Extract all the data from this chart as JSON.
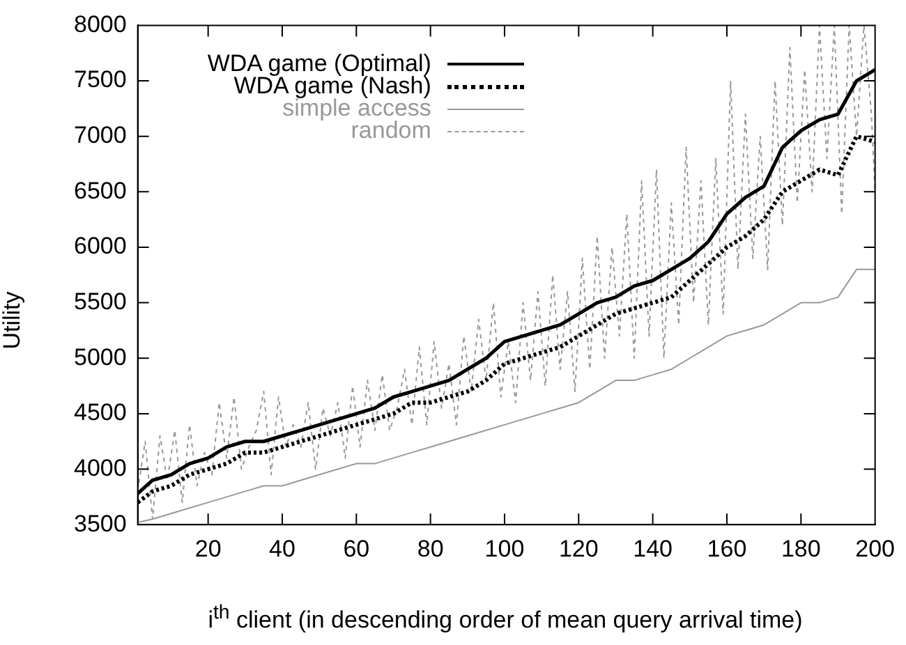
{
  "chart_data": {
    "type": "line",
    "xlabel": "i$^{th}$ client (in descending order of mean query arrival time)",
    "ylabel": "Utility",
    "xlim": [
      1,
      200
    ],
    "xticks": [
      20,
      40,
      60,
      80,
      100,
      120,
      140,
      160,
      180,
      200
    ],
    "ylim": [
      3500,
      8000
    ],
    "yticks": [
      3500,
      4000,
      4500,
      5000,
      5500,
      6000,
      6500,
      7000,
      7500,
      8000
    ],
    "legend": "top left",
    "grid": false,
    "marker": "none",
    "series": [
      {
        "name": "WDA game (Optimal)",
        "color": "#000000",
        "line_style": "solid",
        "x": [
          1,
          5,
          10,
          15,
          20,
          25,
          30,
          35,
          40,
          45,
          50,
          55,
          60,
          65,
          70,
          75,
          80,
          85,
          90,
          95,
          100,
          105,
          110,
          115,
          120,
          125,
          130,
          135,
          140,
          145,
          150,
          155,
          160,
          165,
          170,
          175,
          180,
          185,
          190,
          195,
          200
        ],
        "values": [
          3780,
          3900,
          3950,
          4050,
          4100,
          4200,
          4250,
          4250,
          4300,
          4350,
          4400,
          4450,
          4500,
          4550,
          4650,
          4700,
          4750,
          4800,
          4900,
          5000,
          5150,
          5200,
          5250,
          5300,
          5400,
          5500,
          5550,
          5650,
          5700,
          5800,
          5900,
          6050,
          6300,
          6450,
          6550,
          6900,
          7050,
          7150,
          7200,
          7500,
          7600
        ]
      },
      {
        "name": "WDA game (Nash)",
        "color": "#000000",
        "line_style": "dotted",
        "x": [
          1,
          5,
          10,
          15,
          20,
          25,
          30,
          35,
          40,
          45,
          50,
          55,
          60,
          65,
          70,
          75,
          80,
          85,
          90,
          95,
          100,
          105,
          110,
          115,
          120,
          125,
          130,
          135,
          140,
          145,
          150,
          155,
          160,
          165,
          170,
          175,
          180,
          185,
          190,
          195,
          200
        ],
        "values": [
          3700,
          3800,
          3850,
          3950,
          4000,
          4050,
          4150,
          4150,
          4200,
          4250,
          4300,
          4350,
          4400,
          4450,
          4500,
          4600,
          4600,
          4650,
          4700,
          4800,
          4950,
          5000,
          5050,
          5100,
          5200,
          5300,
          5400,
          5450,
          5500,
          5550,
          5700,
          5850,
          6000,
          6100,
          6250,
          6500,
          6600,
          6700,
          6650,
          7000,
          6950
        ]
      },
      {
        "name": "simple access",
        "color": "#999999",
        "line_style": "solid",
        "x": [
          1,
          5,
          10,
          15,
          20,
          25,
          30,
          35,
          40,
          45,
          50,
          55,
          60,
          65,
          70,
          75,
          80,
          85,
          90,
          95,
          100,
          105,
          110,
          115,
          120,
          125,
          130,
          135,
          140,
          145,
          150,
          155,
          160,
          165,
          170,
          175,
          180,
          185,
          190,
          195,
          200
        ],
        "values": [
          3520,
          3550,
          3600,
          3650,
          3700,
          3750,
          3800,
          3850,
          3850,
          3900,
          3950,
          4000,
          4050,
          4050,
          4100,
          4150,
          4200,
          4250,
          4300,
          4350,
          4400,
          4450,
          4500,
          4550,
          4600,
          4700,
          4800,
          4800,
          4850,
          4900,
          5000,
          5100,
          5200,
          5250,
          5300,
          5400,
          5500,
          5500,
          5550,
          5800,
          5800
        ]
      },
      {
        "name": "random",
        "color": "#999999",
        "line_style": "dashed",
        "x": [
          1,
          3,
          5,
          7,
          9,
          11,
          13,
          15,
          17,
          19,
          21,
          23,
          25,
          27,
          29,
          31,
          33,
          35,
          37,
          39,
          41,
          43,
          45,
          47,
          49,
          51,
          53,
          55,
          57,
          59,
          61,
          63,
          65,
          67,
          69,
          71,
          73,
          75,
          77,
          79,
          81,
          83,
          85,
          87,
          89,
          91,
          93,
          95,
          97,
          99,
          101,
          103,
          105,
          107,
          109,
          111,
          113,
          115,
          117,
          119,
          121,
          123,
          125,
          127,
          129,
          131,
          133,
          135,
          137,
          139,
          141,
          143,
          145,
          147,
          149,
          151,
          153,
          155,
          157,
          159,
          161,
          163,
          165,
          167,
          169,
          171,
          173,
          175,
          177,
          179,
          181,
          183,
          185,
          187,
          189,
          191,
          193,
          195,
          197,
          199,
          200
        ],
        "values": [
          3800,
          4250,
          3550,
          4300,
          3900,
          4350,
          3700,
          4400,
          3850,
          4150,
          3950,
          4600,
          4100,
          4650,
          4000,
          4200,
          4350,
          4700,
          3950,
          4650,
          4200,
          4400,
          4200,
          4600,
          4000,
          4550,
          4300,
          4600,
          4100,
          4750,
          4200,
          4800,
          4350,
          4850,
          4350,
          4550,
          4900,
          4400,
          5100,
          4400,
          5150,
          4550,
          4950,
          4400,
          5200,
          4700,
          5350,
          4800,
          5500,
          4650,
          5150,
          4600,
          5500,
          4800,
          5600,
          4750,
          5750,
          4900,
          5600,
          4700,
          5900,
          4900,
          6100,
          5000,
          6000,
          5200,
          6300,
          5000,
          6600,
          5200,
          6700,
          5000,
          6400,
          5300,
          6900,
          5500,
          6600,
          5300,
          6800,
          5400,
          7500,
          5800,
          7200,
          5900,
          7000,
          5800,
          7500,
          6200,
          7800,
          6400,
          7600,
          6500,
          8000,
          6800,
          8000,
          6300,
          8000,
          7000,
          8000,
          7200,
          6500
        ]
      }
    ]
  }
}
